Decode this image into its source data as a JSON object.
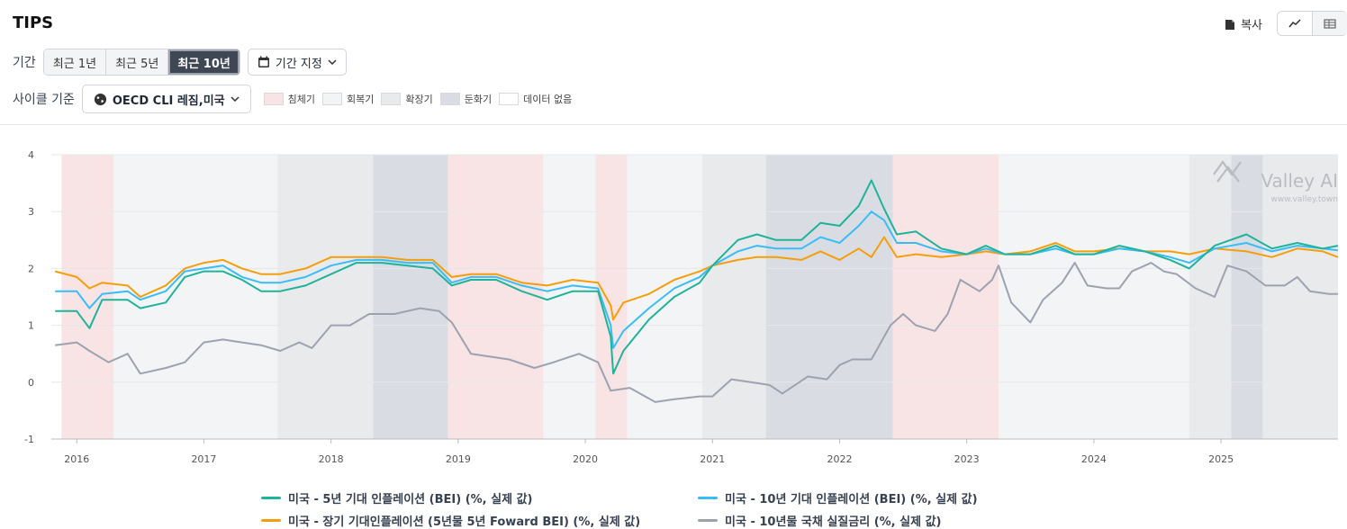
{
  "header": {
    "title": "TIPS",
    "copy_label": "복사"
  },
  "period": {
    "label": "기간",
    "options": [
      "최근 1년",
      "최근 5년",
      "최근 10년"
    ],
    "active": "최근 10년",
    "custom_label": "기간 지정"
  },
  "cycle": {
    "label": "사이클 기준",
    "selector": "OECD CLI 레짐,미국",
    "phases": [
      {
        "name": "침체기",
        "color": "#f8e4e4"
      },
      {
        "name": "회복기",
        "color": "#f3f4f6"
      },
      {
        "name": "확장기",
        "color": "#e9eaec"
      },
      {
        "name": "둔화기",
        "color": "#d9dde3"
      },
      {
        "name": "데이터 없음",
        "color": "#ffffff"
      }
    ]
  },
  "watermark": {
    "brand": "Valley AI",
    "url": "www.valley.town"
  },
  "chart_data": {
    "type": "line",
    "ylim": [
      -1,
      4
    ],
    "yticks": [
      "4",
      "3",
      "2",
      "1",
      "0",
      "-1"
    ],
    "xticks": [
      "2016",
      "2017",
      "2018",
      "2019",
      "2020",
      "2021",
      "2022",
      "2023",
      "2024",
      "2025"
    ],
    "x_range": [
      "2015-10",
      "2025-11"
    ],
    "regime_bands": [
      {
        "start": 2015.88,
        "end": 2016.29,
        "phase": "침체기"
      },
      {
        "start": 2016.29,
        "end": 2017.58,
        "phase": "회복기"
      },
      {
        "start": 2017.58,
        "end": 2018.33,
        "phase": "확장기"
      },
      {
        "start": 2018.33,
        "end": 2018.92,
        "phase": "둔화기"
      },
      {
        "start": 2018.92,
        "end": 2019.67,
        "phase": "침체기"
      },
      {
        "start": 2019.67,
        "end": 2020.08,
        "phase": "회복기"
      },
      {
        "start": 2020.08,
        "end": 2020.33,
        "phase": "침체기"
      },
      {
        "start": 2020.33,
        "end": 2020.92,
        "phase": "회복기"
      },
      {
        "start": 2020.92,
        "end": 2021.42,
        "phase": "확장기"
      },
      {
        "start": 2021.42,
        "end": 2022.42,
        "phase": "둔화기"
      },
      {
        "start": 2022.42,
        "end": 2023.25,
        "phase": "침체기"
      },
      {
        "start": 2023.25,
        "end": 2024.75,
        "phase": "회복기"
      },
      {
        "start": 2024.75,
        "end": 2025.08,
        "phase": "확장기"
      },
      {
        "start": 2025.08,
        "end": 2025.33,
        "phase": "둔화기"
      },
      {
        "start": 2025.33,
        "end": 2025.92,
        "phase": "확장기"
      }
    ],
    "series": [
      {
        "name": "미국 - 5년 기대 인플레이션 (BEI) (%, 실제 값)",
        "color": "#1fb39a",
        "points": [
          [
            2015.83,
            1.25
          ],
          [
            2016.0,
            1.25
          ],
          [
            2016.1,
            0.95
          ],
          [
            2016.2,
            1.45
          ],
          [
            2016.4,
            1.45
          ],
          [
            2016.5,
            1.3
          ],
          [
            2016.7,
            1.4
          ],
          [
            2016.85,
            1.85
          ],
          [
            2017.0,
            1.95
          ],
          [
            2017.15,
            1.95
          ],
          [
            2017.3,
            1.8
          ],
          [
            2017.45,
            1.6
          ],
          [
            2017.6,
            1.6
          ],
          [
            2017.8,
            1.7
          ],
          [
            2018.0,
            1.9
          ],
          [
            2018.2,
            2.1
          ],
          [
            2018.4,
            2.1
          ],
          [
            2018.6,
            2.05
          ],
          [
            2018.8,
            2.0
          ],
          [
            2018.95,
            1.7
          ],
          [
            2019.1,
            1.8
          ],
          [
            2019.3,
            1.8
          ],
          [
            2019.5,
            1.6
          ],
          [
            2019.7,
            1.45
          ],
          [
            2019.9,
            1.6
          ],
          [
            2020.1,
            1.6
          ],
          [
            2020.2,
            0.8
          ],
          [
            2020.22,
            0.15
          ],
          [
            2020.3,
            0.55
          ],
          [
            2020.5,
            1.1
          ],
          [
            2020.7,
            1.5
          ],
          [
            2020.9,
            1.75
          ],
          [
            2021.0,
            2.05
          ],
          [
            2021.2,
            2.5
          ],
          [
            2021.35,
            2.6
          ],
          [
            2021.5,
            2.5
          ],
          [
            2021.7,
            2.5
          ],
          [
            2021.85,
            2.8
          ],
          [
            2022.0,
            2.75
          ],
          [
            2022.15,
            3.1
          ],
          [
            2022.25,
            3.55
          ],
          [
            2022.35,
            3.05
          ],
          [
            2022.45,
            2.6
          ],
          [
            2022.6,
            2.65
          ],
          [
            2022.8,
            2.35
          ],
          [
            2023.0,
            2.25
          ],
          [
            2023.15,
            2.4
          ],
          [
            2023.3,
            2.25
          ],
          [
            2023.5,
            2.25
          ],
          [
            2023.7,
            2.4
          ],
          [
            2023.85,
            2.25
          ],
          [
            2024.0,
            2.25
          ],
          [
            2024.2,
            2.4
          ],
          [
            2024.4,
            2.3
          ],
          [
            2024.6,
            2.15
          ],
          [
            2024.75,
            2.0
          ],
          [
            2024.95,
            2.4
          ],
          [
            2025.2,
            2.6
          ],
          [
            2025.4,
            2.35
          ],
          [
            2025.6,
            2.45
          ],
          [
            2025.8,
            2.35
          ],
          [
            2025.92,
            2.4
          ]
        ]
      },
      {
        "name": "미국 - 10년 기대 인플레이션 (BEI) (%, 실제 값)",
        "color": "#38bdf8",
        "points": [
          [
            2015.83,
            1.6
          ],
          [
            2016.0,
            1.6
          ],
          [
            2016.1,
            1.3
          ],
          [
            2016.2,
            1.55
          ],
          [
            2016.4,
            1.6
          ],
          [
            2016.5,
            1.45
          ],
          [
            2016.7,
            1.6
          ],
          [
            2016.85,
            1.95
          ],
          [
            2017.0,
            2.0
          ],
          [
            2017.15,
            2.05
          ],
          [
            2017.3,
            1.85
          ],
          [
            2017.45,
            1.75
          ],
          [
            2017.6,
            1.75
          ],
          [
            2017.8,
            1.85
          ],
          [
            2018.0,
            2.05
          ],
          [
            2018.2,
            2.15
          ],
          [
            2018.4,
            2.15
          ],
          [
            2018.6,
            2.1
          ],
          [
            2018.8,
            2.1
          ],
          [
            2018.95,
            1.75
          ],
          [
            2019.1,
            1.85
          ],
          [
            2019.3,
            1.85
          ],
          [
            2019.5,
            1.7
          ],
          [
            2019.7,
            1.6
          ],
          [
            2019.9,
            1.7
          ],
          [
            2020.1,
            1.65
          ],
          [
            2020.2,
            1.0
          ],
          [
            2020.22,
            0.6
          ],
          [
            2020.3,
            0.9
          ],
          [
            2020.5,
            1.3
          ],
          [
            2020.7,
            1.65
          ],
          [
            2020.9,
            1.85
          ],
          [
            2021.0,
            2.05
          ],
          [
            2021.2,
            2.3
          ],
          [
            2021.35,
            2.4
          ],
          [
            2021.5,
            2.35
          ],
          [
            2021.7,
            2.35
          ],
          [
            2021.85,
            2.55
          ],
          [
            2022.0,
            2.45
          ],
          [
            2022.15,
            2.75
          ],
          [
            2022.25,
            3.0
          ],
          [
            2022.35,
            2.85
          ],
          [
            2022.45,
            2.45
          ],
          [
            2022.6,
            2.45
          ],
          [
            2022.8,
            2.3
          ],
          [
            2023.0,
            2.25
          ],
          [
            2023.15,
            2.35
          ],
          [
            2023.3,
            2.25
          ],
          [
            2023.5,
            2.25
          ],
          [
            2023.7,
            2.35
          ],
          [
            2023.85,
            2.25
          ],
          [
            2024.0,
            2.25
          ],
          [
            2024.2,
            2.35
          ],
          [
            2024.4,
            2.3
          ],
          [
            2024.6,
            2.2
          ],
          [
            2024.75,
            2.1
          ],
          [
            2024.95,
            2.35
          ],
          [
            2025.2,
            2.45
          ],
          [
            2025.4,
            2.3
          ],
          [
            2025.6,
            2.4
          ],
          [
            2025.8,
            2.35
          ],
          [
            2025.92,
            2.32
          ]
        ]
      },
      {
        "name": "미국 - 장기 기대인플레이션 (5년물 5년 Foward BEI) (%, 실제 값)",
        "color": "#f59e0b",
        "points": [
          [
            2015.83,
            1.95
          ],
          [
            2016.0,
            1.85
          ],
          [
            2016.1,
            1.65
          ],
          [
            2016.2,
            1.75
          ],
          [
            2016.4,
            1.7
          ],
          [
            2016.5,
            1.5
          ],
          [
            2016.7,
            1.7
          ],
          [
            2016.85,
            2.0
          ],
          [
            2017.0,
            2.1
          ],
          [
            2017.15,
            2.15
          ],
          [
            2017.3,
            2.0
          ],
          [
            2017.45,
            1.9
          ],
          [
            2017.6,
            1.9
          ],
          [
            2017.8,
            2.0
          ],
          [
            2018.0,
            2.2
          ],
          [
            2018.2,
            2.2
          ],
          [
            2018.4,
            2.2
          ],
          [
            2018.6,
            2.15
          ],
          [
            2018.8,
            2.15
          ],
          [
            2018.95,
            1.85
          ],
          [
            2019.1,
            1.9
          ],
          [
            2019.3,
            1.9
          ],
          [
            2019.5,
            1.75
          ],
          [
            2019.7,
            1.7
          ],
          [
            2019.9,
            1.8
          ],
          [
            2020.1,
            1.75
          ],
          [
            2020.2,
            1.35
          ],
          [
            2020.22,
            1.1
          ],
          [
            2020.3,
            1.4
          ],
          [
            2020.5,
            1.55
          ],
          [
            2020.7,
            1.8
          ],
          [
            2020.9,
            1.95
          ],
          [
            2021.0,
            2.05
          ],
          [
            2021.2,
            2.15
          ],
          [
            2021.35,
            2.2
          ],
          [
            2021.5,
            2.2
          ],
          [
            2021.7,
            2.15
          ],
          [
            2021.85,
            2.3
          ],
          [
            2022.0,
            2.15
          ],
          [
            2022.15,
            2.35
          ],
          [
            2022.25,
            2.2
          ],
          [
            2022.35,
            2.55
          ],
          [
            2022.45,
            2.2
          ],
          [
            2022.6,
            2.25
          ],
          [
            2022.8,
            2.2
          ],
          [
            2023.0,
            2.25
          ],
          [
            2023.15,
            2.3
          ],
          [
            2023.3,
            2.25
          ],
          [
            2023.5,
            2.3
          ],
          [
            2023.7,
            2.45
          ],
          [
            2023.85,
            2.3
          ],
          [
            2024.0,
            2.3
          ],
          [
            2024.2,
            2.35
          ],
          [
            2024.4,
            2.3
          ],
          [
            2024.6,
            2.3
          ],
          [
            2024.75,
            2.25
          ],
          [
            2024.95,
            2.35
          ],
          [
            2025.2,
            2.3
          ],
          [
            2025.4,
            2.2
          ],
          [
            2025.6,
            2.35
          ],
          [
            2025.8,
            2.3
          ],
          [
            2025.92,
            2.2
          ]
        ]
      },
      {
        "name": "미국 - 10년물 국채 실질금리 (%, 실제 값)",
        "color": "#9ca3af",
        "points": [
          [
            2015.83,
            0.65
          ],
          [
            2016.0,
            0.7
          ],
          [
            2016.1,
            0.55
          ],
          [
            2016.25,
            0.35
          ],
          [
            2016.4,
            0.5
          ],
          [
            2016.5,
            0.15
          ],
          [
            2016.7,
            0.25
          ],
          [
            2016.85,
            0.35
          ],
          [
            2017.0,
            0.7
          ],
          [
            2017.15,
            0.75
          ],
          [
            2017.3,
            0.7
          ],
          [
            2017.45,
            0.65
          ],
          [
            2017.6,
            0.55
          ],
          [
            2017.75,
            0.7
          ],
          [
            2017.85,
            0.6
          ],
          [
            2018.0,
            1.0
          ],
          [
            2018.15,
            1.0
          ],
          [
            2018.3,
            1.2
          ],
          [
            2018.5,
            1.2
          ],
          [
            2018.7,
            1.3
          ],
          [
            2018.85,
            1.25
          ],
          [
            2018.95,
            1.05
          ],
          [
            2019.1,
            0.5
          ],
          [
            2019.25,
            0.45
          ],
          [
            2019.4,
            0.4
          ],
          [
            2019.6,
            0.25
          ],
          [
            2019.75,
            0.35
          ],
          [
            2019.95,
            0.5
          ],
          [
            2020.1,
            0.35
          ],
          [
            2020.2,
            -0.15
          ],
          [
            2020.35,
            -0.1
          ],
          [
            2020.55,
            -0.35
          ],
          [
            2020.7,
            -0.3
          ],
          [
            2020.9,
            -0.25
          ],
          [
            2021.0,
            -0.25
          ],
          [
            2021.15,
            0.05
          ],
          [
            2021.3,
            0.0
          ],
          [
            2021.45,
            -0.05
          ],
          [
            2021.55,
            -0.2
          ],
          [
            2021.75,
            0.1
          ],
          [
            2021.9,
            0.05
          ],
          [
            2022.0,
            0.3
          ],
          [
            2022.1,
            0.4
          ],
          [
            2022.25,
            0.4
          ],
          [
            2022.4,
            1.0
          ],
          [
            2022.5,
            1.2
          ],
          [
            2022.6,
            1.0
          ],
          [
            2022.75,
            0.9
          ],
          [
            2022.85,
            1.2
          ],
          [
            2022.95,
            1.8
          ],
          [
            2023.1,
            1.6
          ],
          [
            2023.2,
            1.8
          ],
          [
            2023.25,
            2.05
          ],
          [
            2023.35,
            1.4
          ],
          [
            2023.5,
            1.05
          ],
          [
            2023.6,
            1.45
          ],
          [
            2023.75,
            1.75
          ],
          [
            2023.85,
            2.1
          ],
          [
            2023.95,
            1.7
          ],
          [
            2024.1,
            1.65
          ],
          [
            2024.2,
            1.65
          ],
          [
            2024.3,
            1.95
          ],
          [
            2024.45,
            2.1
          ],
          [
            2024.55,
            1.95
          ],
          [
            2024.65,
            1.9
          ],
          [
            2024.8,
            1.65
          ],
          [
            2024.95,
            1.5
          ],
          [
            2025.05,
            2.05
          ],
          [
            2025.2,
            1.95
          ],
          [
            2025.35,
            1.7
          ],
          [
            2025.5,
            1.7
          ],
          [
            2025.6,
            1.85
          ],
          [
            2025.7,
            1.6
          ],
          [
            2025.85,
            1.55
          ],
          [
            2025.92,
            1.55
          ]
        ]
      }
    ]
  }
}
